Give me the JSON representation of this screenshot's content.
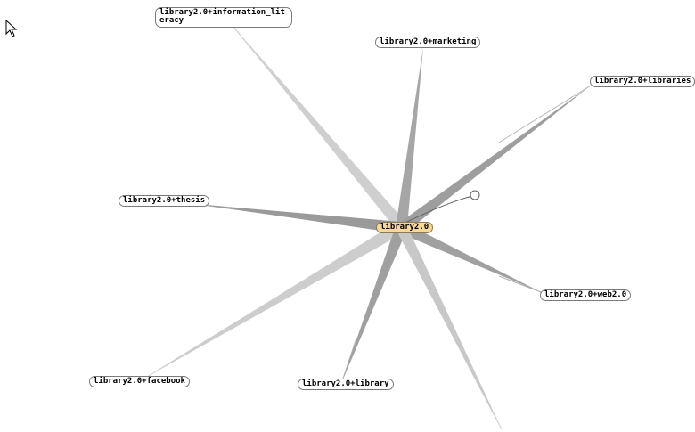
{
  "graph": {
    "center": {
      "id": "center",
      "label": "library2.0"
    },
    "nodes": [
      {
        "id": "n-information-literacy",
        "label": "library2.0+information_literacy"
      },
      {
        "id": "n-marketing",
        "label": "library2.0+marketing"
      },
      {
        "id": "n-libraries",
        "label": "library2.0+libraries"
      },
      {
        "id": "n-thesis",
        "label": "library2.0+thesis"
      },
      {
        "id": "n-web20",
        "label": "library2.0+web2.0"
      },
      {
        "id": "n-facebook",
        "label": "library2.0+facebook"
      },
      {
        "id": "n-library",
        "label": "library2.0+library"
      }
    ],
    "edges": [
      {
        "to": "n-information-literacy"
      },
      {
        "to": "n-marketing"
      },
      {
        "to": "n-libraries"
      },
      {
        "to": "n-thesis"
      },
      {
        "to": "n-web20"
      },
      {
        "to": "n-facebook"
      },
      {
        "to": "n-library"
      },
      {
        "to": "offscreen-bottom"
      },
      {
        "to": "drag-handle"
      }
    ]
  },
  "colors": {
    "center_fill": "#f7d993",
    "edge_dark": "#9a9a9a",
    "edge_light": "#cfcfcf",
    "node_border": "#7a7a7a"
  },
  "icons": {
    "cursor": "arrow-cursor-icon",
    "handle": "drag-handle-icon"
  }
}
